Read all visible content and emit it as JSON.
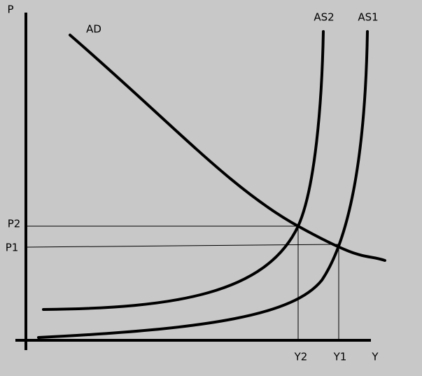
{
  "axes": {
    "y_label": "P",
    "x_label": "Y"
  },
  "curves": [
    {
      "label": "AD"
    },
    {
      "label": "AS2"
    },
    {
      "label": "AS1"
    }
  ],
  "levels": {
    "prices": [
      "P2",
      "P1"
    ],
    "outputs": [
      "Y2",
      "Y1"
    ]
  }
}
